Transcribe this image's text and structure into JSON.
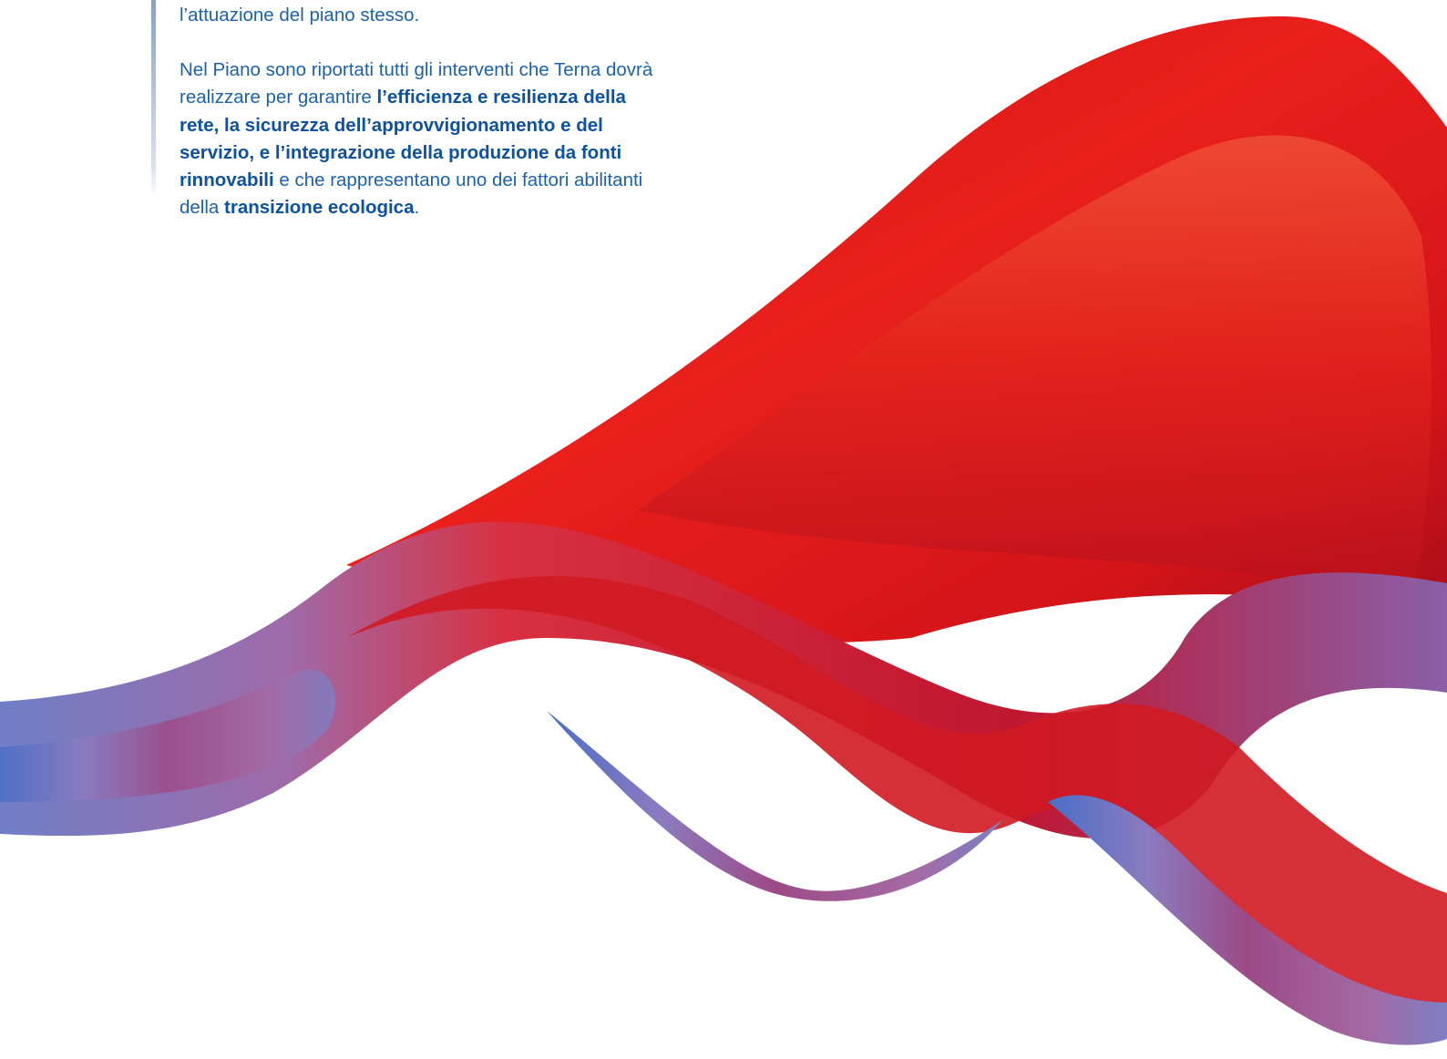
{
  "paragraphs": [
    {
      "runs": [
        {
          "text": "l’attuazione del piano stesso.",
          "bold": false
        }
      ]
    },
    {
      "runs": [
        {
          "text": "Nel Piano sono riportati tutti gli interventi che Terna dovrà realizzare per garantire ",
          "bold": false
        },
        {
          "text": "l’efficienza e resilienza della rete, la sicurezza dell’approvvigionamento e del servizio, e l’integrazione della produzione da fonti rinnovabili",
          "bold": true
        },
        {
          "text": " e che rappresentano uno dei fattori abilitanti della ",
          "bold": false
        },
        {
          "text": "transizione ecologica",
          "bold": true
        },
        {
          "text": ".",
          "bold": false
        }
      ]
    }
  ]
}
